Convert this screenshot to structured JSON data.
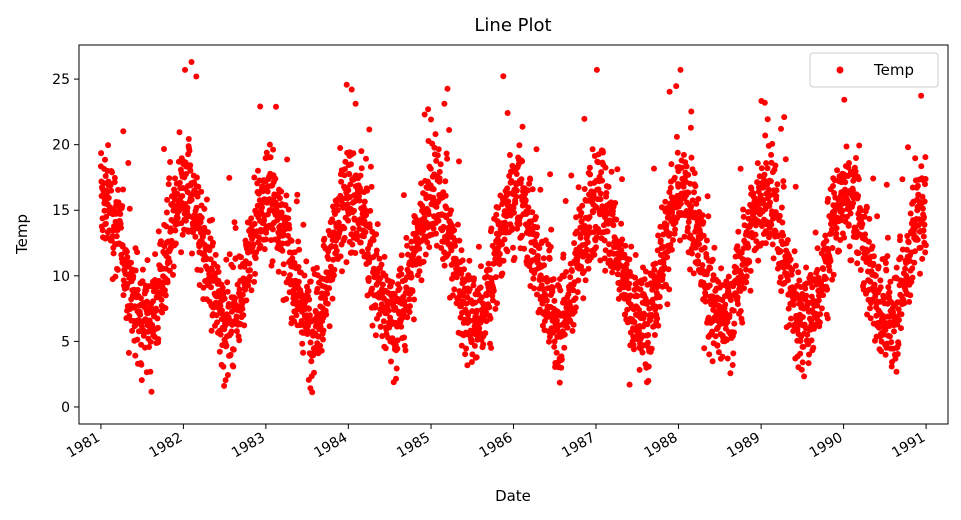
{
  "chart_data": {
    "type": "scatter",
    "title": "Line Plot",
    "xlabel": "Date",
    "ylabel": "Temp",
    "xlim": [
      "1980-09-26",
      "1991-04-08"
    ],
    "ylim": [
      -1.3,
      27.6
    ],
    "x_ticks": [
      "1981",
      "1982",
      "1983",
      "1984",
      "1985",
      "1986",
      "1987",
      "1988",
      "1989",
      "1990",
      "1991"
    ],
    "y_ticks": [
      0,
      5,
      10,
      15,
      20,
      25
    ],
    "grid": false,
    "legend": {
      "position": "top-right",
      "entries": [
        "Temp"
      ]
    },
    "series": [
      {
        "name": "Temp",
        "color": "#ff0000",
        "marker": "circle",
        "x_start": "1981-01-01",
        "x_end": "1990-12-31",
        "frequency": "daily",
        "seasonal_model": {
          "mean": 11.2,
          "amplitude": 4.6,
          "peak_month": "January",
          "noise_sd": 2.9
        },
        "extremes": {
          "max": 26.3,
          "max_date": "1982-02-06",
          "min": 0.0
        }
      }
    ]
  }
}
